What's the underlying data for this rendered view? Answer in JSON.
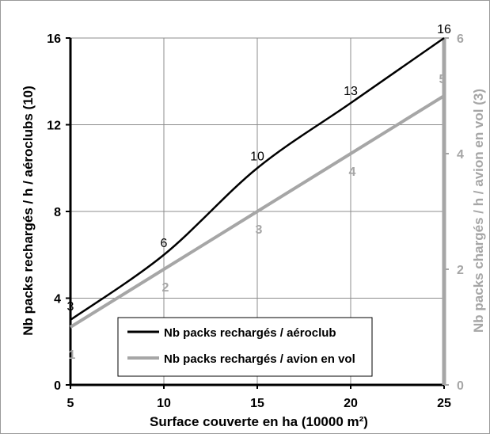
{
  "chart_data": {
    "type": "line",
    "xlabel": "Surface couverte en ha (10000 m²)",
    "ylabel_left": "Nb packs rechargés / h / aéroclubs (10)",
    "ylabel_right": "Nb packs chargés  / h / avion en vol (3)",
    "x_ticks": [
      "5",
      "10",
      "15",
      "20",
      "25"
    ],
    "y_left_ticks": [
      "0",
      "4",
      "8",
      "12",
      "16"
    ],
    "y_right_ticks": [
      "0",
      "2",
      "4",
      "6"
    ],
    "xlim": [
      5,
      25
    ],
    "ylim_left": [
      0,
      16
    ],
    "ylim_right": [
      0,
      6
    ],
    "grid": true,
    "legend_position": "bottom-center",
    "series": [
      {
        "name": "Nb packs rechargés / aéroclub",
        "axis": "left",
        "color": "#000000",
        "x": [
          5,
          10,
          15,
          20,
          25
        ],
        "y": [
          3,
          6,
          10,
          13,
          16
        ],
        "labels": [
          "3",
          "6",
          "10",
          "13",
          "16"
        ]
      },
      {
        "name": "Nb packs rechargés / avion en vol",
        "axis": "right",
        "color": "#a6a6a6",
        "x": [
          5,
          10,
          15,
          20,
          25
        ],
        "y": [
          1,
          2,
          3,
          4,
          5
        ],
        "labels": [
          "1",
          "2",
          "3",
          "4",
          "5"
        ]
      }
    ]
  }
}
